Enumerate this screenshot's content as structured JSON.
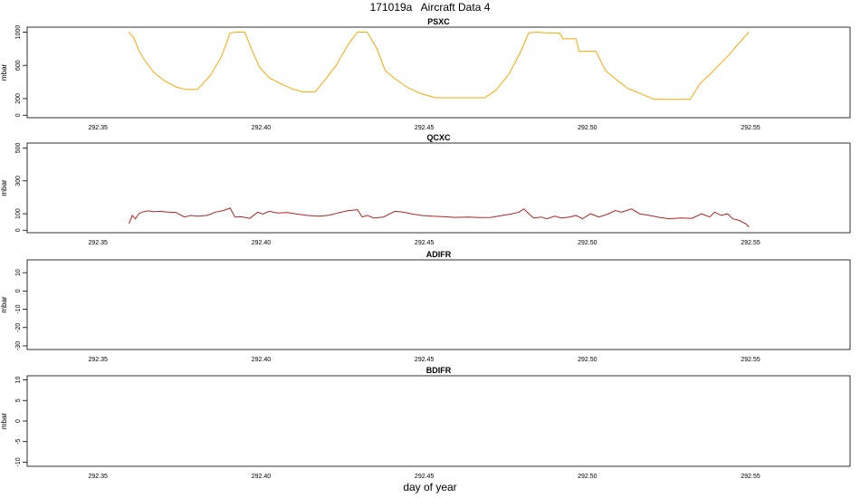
{
  "title": "171019a   Aircraft Data 4",
  "xlabel": "day of year",
  "chart_data": [
    {
      "type": "line",
      "title": "PSXC",
      "ylabel": "mbar",
      "color": "#FFA500",
      "xlim": [
        292.3283,
        292.5805
      ],
      "ylim": [
        -30,
        1060
      ],
      "yticks": [
        0,
        200,
        600,
        1000
      ],
      "xticks": [
        "292.35",
        "292.40",
        "292.45",
        "292.50",
        "292.55"
      ],
      "series": [
        {
          "x": [
            292.3595,
            292.361,
            292.3625,
            292.364,
            292.367,
            292.3705,
            292.374,
            292.377,
            292.3805,
            292.3845,
            292.388,
            292.3905,
            292.3925,
            292.395,
            292.397,
            292.3995,
            292.4025,
            292.4065,
            292.41,
            292.413,
            292.4165,
            292.4195,
            292.423,
            292.4265,
            292.4295,
            292.4325,
            292.4355,
            292.438,
            292.441,
            292.445,
            292.449,
            292.4535,
            292.4575,
            292.4615,
            292.465,
            292.4685,
            292.472,
            292.476,
            292.4795,
            292.482,
            292.4845,
            292.4875,
            292.4915,
            292.4925,
            292.4965,
            292.4975,
            292.5025,
            292.503,
            292.5055,
            292.5085,
            292.5125,
            292.517,
            292.5205,
            292.5245,
            292.5285,
            292.5315,
            292.5345,
            292.5375,
            292.5405,
            292.5435,
            292.5465,
            292.5495
          ],
          "y": [
            1000,
            930,
            780,
            680,
            520,
            410,
            340,
            310,
            310,
            480,
            720,
            990,
            1000,
            1000,
            800,
            580,
            450,
            370,
            310,
            280,
            280,
            420,
            600,
            840,
            1000,
            1000,
            800,
            540,
            440,
            330,
            260,
            210,
            210,
            210,
            210,
            210,
            300,
            500,
            760,
            990,
            1000,
            990,
            990,
            920,
            920,
            770,
            770,
            740,
            540,
            440,
            320,
            250,
            190,
            190,
            190,
            190,
            380,
            490,
            610,
            730,
            870,
            1000
          ]
        }
      ]
    },
    {
      "type": "line",
      "title": "QCXC",
      "ylabel": "mbar",
      "color": "#B22222",
      "xlim": [
        292.3283,
        292.5805
      ],
      "ylim": [
        -15,
        530
      ],
      "yticks": [
        0,
        100,
        300,
        500
      ],
      "xticks": [
        "292.35",
        "292.40",
        "292.45",
        "292.50",
        "292.55"
      ],
      "series": [
        {
          "x": [
            292.3595,
            292.3605,
            292.3615,
            292.3625,
            292.3635,
            292.3655,
            292.367,
            292.369,
            292.3715,
            292.374,
            292.3765,
            292.3785,
            292.3805,
            292.3835,
            292.386,
            292.3885,
            292.3905,
            292.392,
            292.394,
            292.3965,
            292.399,
            292.4005,
            292.4025,
            292.405,
            292.408,
            292.4105,
            292.414,
            292.418,
            292.421,
            292.4235,
            292.4265,
            292.4295,
            292.431,
            292.4325,
            292.4345,
            292.4375,
            292.4395,
            292.441,
            292.4435,
            292.446,
            292.449,
            292.4525,
            292.456,
            292.4595,
            292.4635,
            292.467,
            292.4705,
            292.474,
            292.477,
            292.479,
            292.4805,
            292.4835,
            292.486,
            292.4875,
            292.49,
            292.492,
            292.4945,
            292.4965,
            292.4985,
            292.501,
            292.5035,
            292.5065,
            292.5085,
            292.5105,
            292.5135,
            292.516,
            292.519,
            292.5215,
            292.525,
            292.5285,
            292.532,
            292.535,
            292.5375,
            292.539,
            292.541,
            292.543,
            292.5445,
            292.5465,
            292.5485,
            292.5495
          ],
          "y": [
            40,
            90,
            70,
            100,
            110,
            118,
            112,
            115,
            110,
            108,
            80,
            90,
            85,
            90,
            110,
            120,
            135,
            80,
            82,
            72,
            110,
            98,
            115,
            105,
            108,
            100,
            90,
            85,
            92,
            105,
            118,
            125,
            80,
            90,
            75,
            80,
            100,
            115,
            110,
            100,
            90,
            85,
            82,
            78,
            80,
            77,
            78,
            90,
            100,
            110,
            130,
            75,
            80,
            70,
            85,
            75,
            80,
            90,
            70,
            100,
            80,
            100,
            120,
            110,
            130,
            100,
            90,
            80,
            70,
            75,
            72,
            100,
            80,
            110,
            90,
            100,
            70,
            60,
            40,
            20
          ]
        }
      ]
    },
    {
      "type": "line",
      "title": "ADIFR",
      "ylabel": "mbar",
      "xlim": [
        292.3283,
        292.5805
      ],
      "ylim": [
        -32,
        17
      ],
      "yticks": [
        -30,
        -20,
        -10,
        0,
        10
      ],
      "xticks": [
        "292.35",
        "292.40",
        "292.45",
        "292.50",
        "292.55"
      ],
      "series": []
    },
    {
      "type": "line",
      "title": "BDIFR",
      "ylabel": "mbar",
      "xlim": [
        292.3283,
        292.5805
      ],
      "ylim": [
        -11,
        11
      ],
      "yticks": [
        -10,
        -5,
        0,
        5,
        10
      ],
      "xticks": [
        "292.35",
        "292.40",
        "292.45",
        "292.50",
        "292.55"
      ],
      "series": []
    }
  ]
}
